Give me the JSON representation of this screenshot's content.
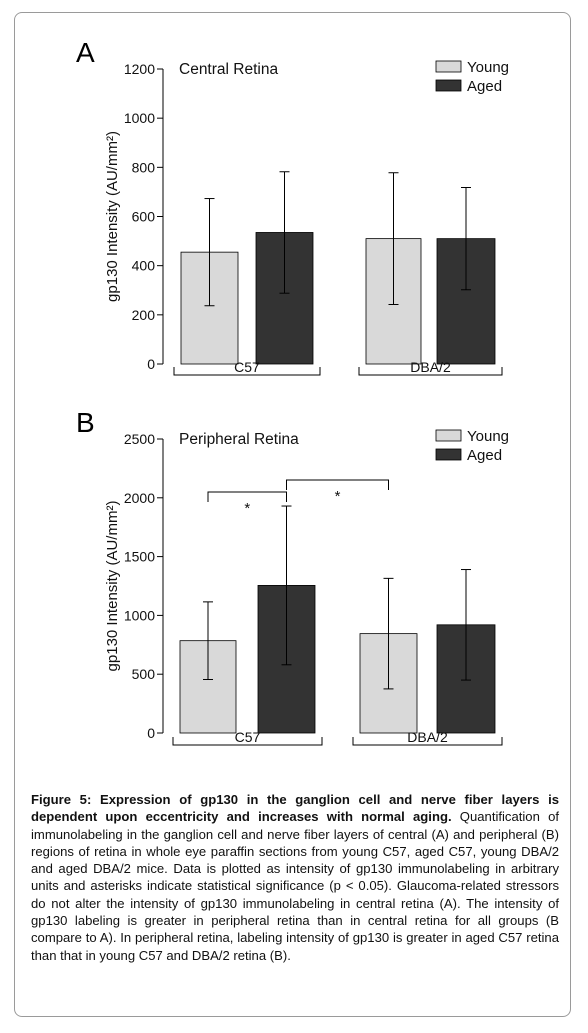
{
  "colors": {
    "young": "#d9d9d9",
    "aged": "#333333",
    "axis": "#000000"
  },
  "chart_data": [
    {
      "panel_letter": "A",
      "type": "bar",
      "title": "Central Retina",
      "ylabel": "gp130 Intensity (AU/mm²)",
      "ylim": [
        0,
        1200
      ],
      "yticks": [
        "0",
        "200",
        "400",
        "600",
        "800",
        "1000",
        "1200"
      ],
      "ytick_values": [
        0,
        200,
        400,
        600,
        800,
        1000,
        1200
      ],
      "groups": [
        "C57",
        "DBA/2"
      ],
      "legend": [
        "Young",
        "Aged"
      ],
      "legend_position": "top-right",
      "series": [
        {
          "name": "Young",
          "values": [
            455,
            510
          ],
          "error": [
            218,
            268
          ]
        },
        {
          "name": "Aged",
          "values": [
            535,
            510
          ],
          "error": [
            247,
            208
          ]
        }
      ]
    },
    {
      "panel_letter": "B",
      "type": "bar",
      "title": "Peripheral Retina",
      "ylabel": "gp130 Intensity (AU/mm²)",
      "ylim": [
        0,
        2500
      ],
      "yticks": [
        "0",
        "500",
        "1000",
        "1500",
        "2000",
        "2500"
      ],
      "ytick_values": [
        0,
        500,
        1000,
        1500,
        2000,
        2500
      ],
      "groups": [
        "C57",
        "DBA/2"
      ],
      "legend": [
        "Young",
        "Aged"
      ],
      "legend_position": "top-right",
      "series": [
        {
          "name": "Young",
          "values": [
            785,
            845
          ],
          "error": [
            330,
            470
          ]
        },
        {
          "name": "Aged",
          "values": [
            1255,
            920
          ],
          "error": [
            675,
            470
          ]
        }
      ],
      "significance": [
        {
          "from": "C57 Young",
          "to": "C57 Aged",
          "label": "*"
        },
        {
          "from": "C57 Aged",
          "to": "DBA/2 Young",
          "label": "*"
        }
      ]
    }
  ],
  "caption": {
    "title": "Figure 5: Expression of gp130 in the ganglion cell and nerve fiber layers is dependent upon eccentricity and increases with normal aging.",
    "body": "Quantification of immunolabeling in the ganglion cell and nerve fiber layers of central (A) and peripheral (B) regions of retina in whole eye paraffin sections from young C57, aged C57, young DBA/2 and aged DBA/2 mice. Data is plotted as intensity of gp130 immunolabeling in arbitrary units and asterisks indicate statistical significance (p < 0.05). Glaucoma-related stressors do not alter the intensity of gp130 immunolabeling in central retina (A). The intensity of gp130 labeling is greater in peripheral retina than in central retina for all groups (B compare to A). In peripheral retina, labeling intensity of gp130 is greater in aged C57 retina than that in young C57 and DBA/2 retina (B)."
  }
}
